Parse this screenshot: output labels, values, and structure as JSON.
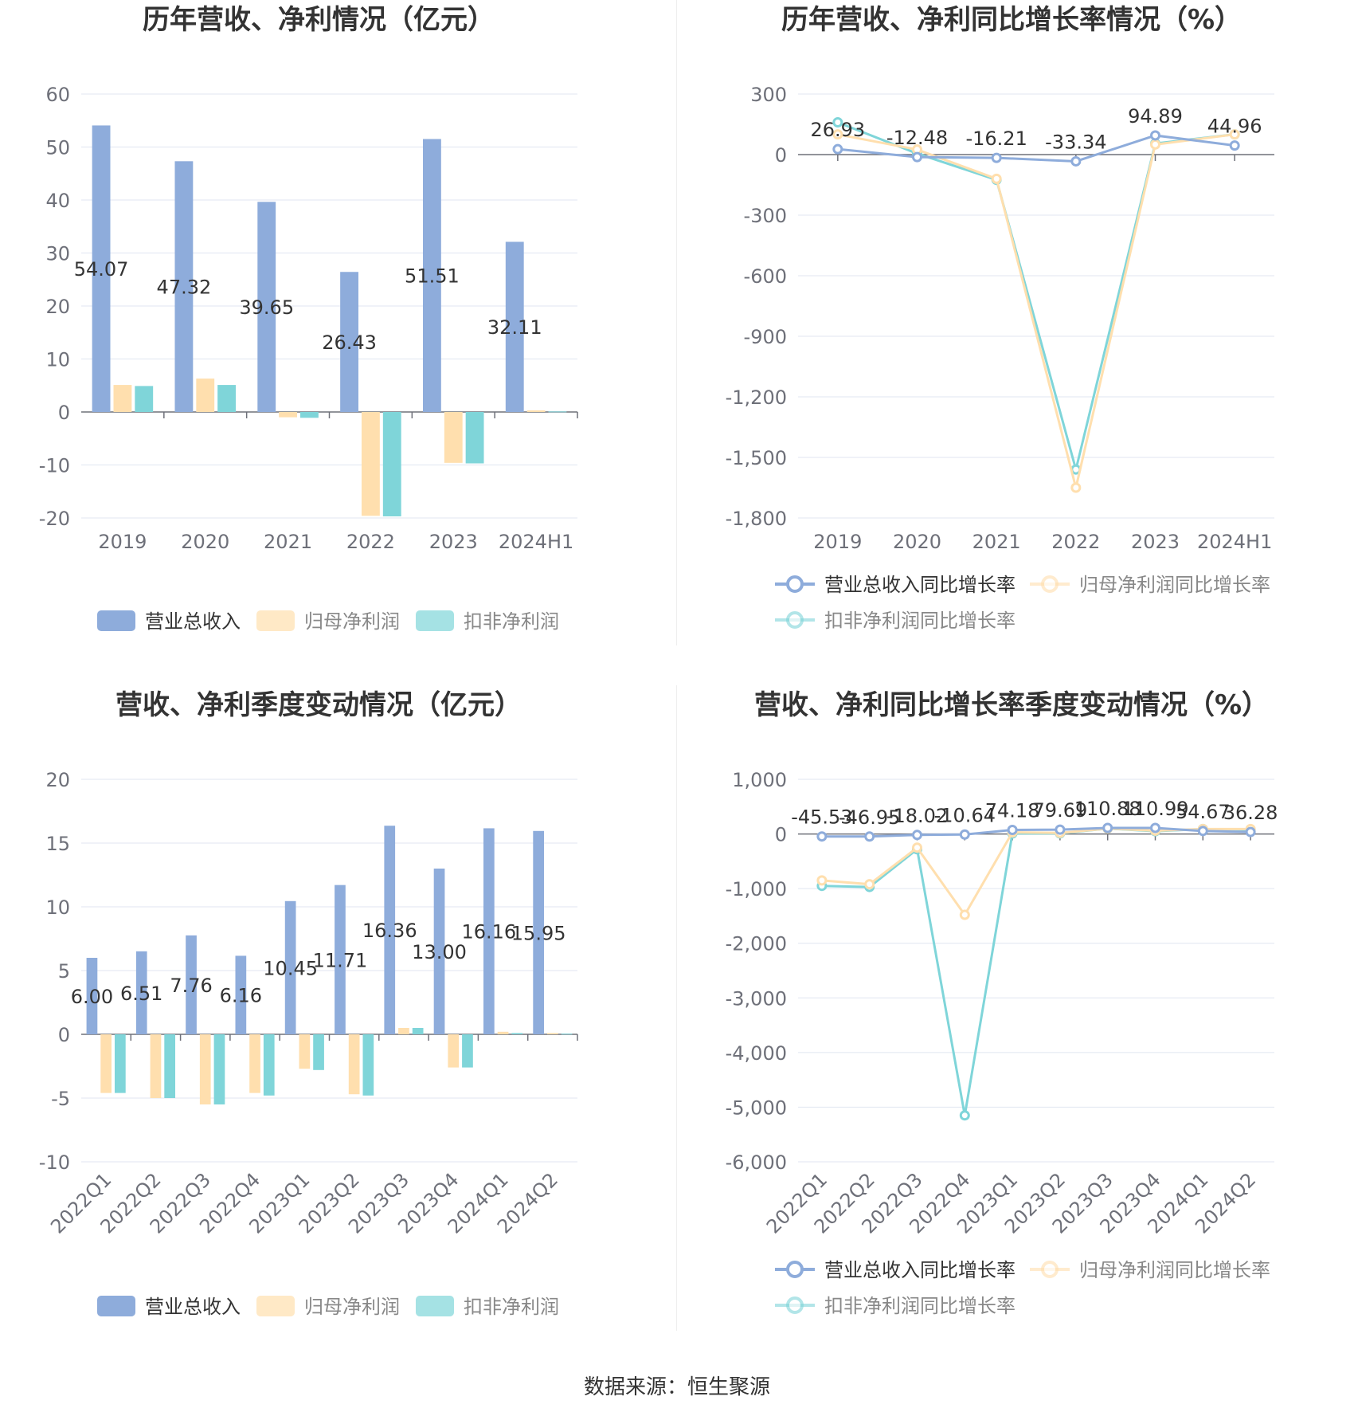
{
  "colors": {
    "revenue": "#8eacdb",
    "parent_profit": "#ffdfae",
    "deducted_profit": "#7fd5d9",
    "axis_text": "#6e7079",
    "grid": "#e0e6f1",
    "title": "#333333",
    "label": "#333333",
    "legend_text": "#555555"
  },
  "source": "数据来源：恒生聚源",
  "chart_data": [
    {
      "id": "annual_amounts",
      "type": "bar",
      "title": "历年营收、净利情况（亿元）",
      "categories": [
        "2019",
        "2020",
        "2021",
        "2022",
        "2023",
        "2024H1"
      ],
      "ylim": [
        -20,
        60
      ],
      "yticks": [
        60,
        50,
        40,
        30,
        20,
        10,
        0,
        -10,
        -20
      ],
      "ytick_labels": [
        "60",
        "50",
        "40",
        "30",
        "20",
        "10",
        "0",
        "-10",
        "-20"
      ],
      "legend_position": "bottom",
      "grid": true,
      "series": [
        {
          "name": "营业总收入",
          "color": "#8eacdb",
          "values": [
            54.07,
            47.32,
            39.65,
            26.43,
            51.51,
            32.11
          ],
          "labels": [
            "54.07",
            "47.32",
            "39.65",
            "26.43",
            "51.51",
            "32.11"
          ]
        },
        {
          "name": "归母净利润",
          "color": "#ffdfae",
          "values": [
            5.1,
            6.3,
            -1.0,
            -19.6,
            -9.6,
            0.3
          ]
        },
        {
          "name": "扣非净利润",
          "color": "#7fd5d9",
          "values": [
            4.9,
            5.1,
            -1.1,
            -19.7,
            -9.7,
            0.1
          ]
        }
      ]
    },
    {
      "id": "annual_growth",
      "type": "line",
      "title": "历年营收、净利同比增长率情况（%）",
      "categories": [
        "2019",
        "2020",
        "2021",
        "2022",
        "2023",
        "2024H1"
      ],
      "ylim": [
        -1800,
        300
      ],
      "yticks": [
        300,
        0,
        -300,
        -600,
        -900,
        -1200,
        -1500,
        -1800
      ],
      "ytick_labels": [
        "300",
        "0",
        "-300",
        "-600",
        "-900",
        "-1,200",
        "-1,500",
        "-1,800"
      ],
      "legend_position": "bottom",
      "grid": true,
      "series": [
        {
          "name": "营业总收入同比增长率",
          "color": "#8eacdb",
          "values": [
            26.93,
            -12.48,
            -16.21,
            -33.34,
            94.89,
            44.96
          ],
          "labels": [
            "26.93",
            "-12.48",
            "-16.21",
            "-33.34",
            "94.89",
            "44.96"
          ]
        },
        {
          "name": "归母净利润同比增长率",
          "color": "#ffdfae",
          "values": [
            100,
            25,
            -120,
            -1650,
            50,
            100
          ]
        },
        {
          "name": "扣非净利润同比增长率",
          "color": "#7fd5d9",
          "values": [
            160,
            5,
            -125,
            -1560,
            55,
            100
          ]
        }
      ]
    },
    {
      "id": "quarterly_amounts",
      "type": "bar",
      "title": "营收、净利季度变动情况（亿元）",
      "categories": [
        "2022Q1",
        "2022Q2",
        "2022Q3",
        "2022Q4",
        "2023Q1",
        "2023Q2",
        "2023Q3",
        "2023Q4",
        "2024Q1",
        "2024Q2"
      ],
      "ylim": [
        -10,
        20
      ],
      "yticks": [
        20,
        15,
        10,
        5,
        0,
        -5,
        -10
      ],
      "ytick_labels": [
        "20",
        "15",
        "10",
        "5",
        "0",
        "-5",
        "-10"
      ],
      "legend_position": "bottom",
      "grid": true,
      "series": [
        {
          "name": "营业总收入",
          "color": "#8eacdb",
          "values": [
            6.0,
            6.51,
            7.76,
            6.16,
            10.45,
            11.71,
            16.36,
            13.0,
            16.16,
            15.95
          ],
          "labels": [
            "6.00",
            "6.51",
            "7.76",
            "6.16",
            "10.45",
            "11.71",
            "16.36",
            "13.00",
            "16.16",
            "15.95"
          ]
        },
        {
          "name": "归母净利润",
          "color": "#ffdfae",
          "values": [
            -4.6,
            -5.0,
            -5.5,
            -4.6,
            -2.7,
            -4.7,
            0.5,
            -2.6,
            0.2,
            0.1
          ]
        },
        {
          "name": "扣非净利润",
          "color": "#7fd5d9",
          "values": [
            -4.6,
            -5.0,
            -5.5,
            -4.8,
            -2.8,
            -4.8,
            0.5,
            -2.6,
            0.1,
            0.05
          ]
        }
      ]
    },
    {
      "id": "quarterly_growth",
      "type": "line",
      "title": "营收、净利同比增长率季度变动情况（%）",
      "categories": [
        "2022Q1",
        "2022Q2",
        "2022Q3",
        "2022Q4",
        "2023Q1",
        "2023Q2",
        "2023Q3",
        "2023Q4",
        "2024Q1",
        "2024Q2"
      ],
      "ylim": [
        -6000,
        1000
      ],
      "yticks": [
        1000,
        0,
        -1000,
        -2000,
        -3000,
        -4000,
        -5000,
        -6000
      ],
      "ytick_labels": [
        "1,000",
        "0",
        "-1,000",
        "-2,000",
        "-3,000",
        "-4,000",
        "-5,000",
        "-6,000"
      ],
      "legend_position": "bottom",
      "grid": true,
      "series": [
        {
          "name": "营业总收入同比增长率",
          "color": "#8eacdb",
          "values": [
            -45.53,
            -46.95,
            -18.02,
            -10.64,
            74.18,
            79.69,
            110.88,
            110.99,
            54.67,
            36.28
          ],
          "labels": [
            "-45.53",
            "-46.95",
            "-18.02",
            "-10.64",
            "74.18",
            "79.69",
            "110.88",
            "110.99",
            "54.67",
            "36.28"
          ]
        },
        {
          "name": "归母净利润同比增长率",
          "color": "#ffdfae",
          "values": [
            -850,
            -920,
            -250,
            -1480,
            30,
            20,
            100,
            60,
            90,
            90
          ]
        },
        {
          "name": "扣非净利润同比增长率",
          "color": "#7fd5d9",
          "values": [
            -950,
            -970,
            -280,
            -5150,
            10,
            10,
            100,
            50,
            90,
            80
          ]
        }
      ]
    }
  ]
}
